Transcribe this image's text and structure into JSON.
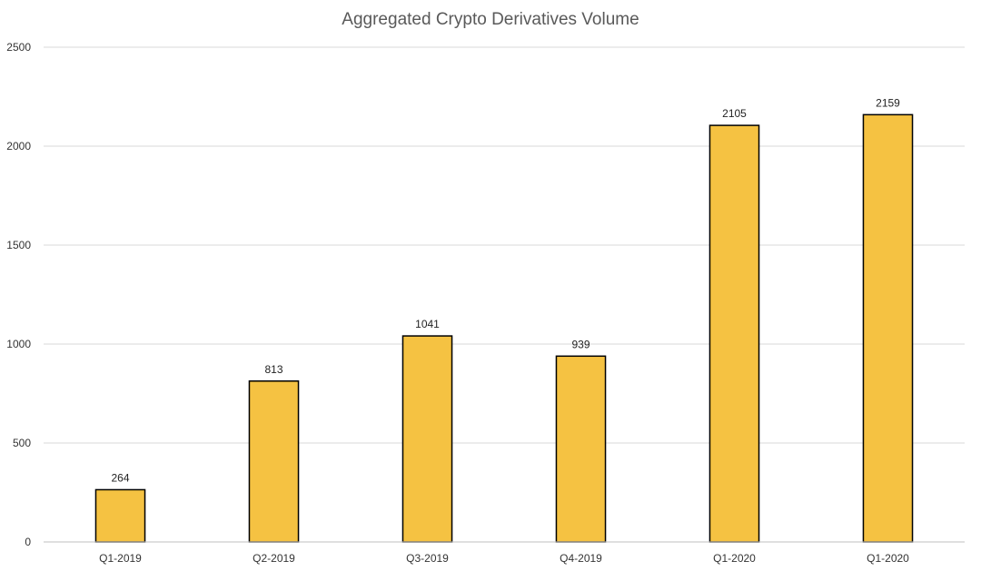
{
  "chart_data": {
    "type": "bar",
    "title": "Aggregated Crypto Derivatives Volume",
    "xlabel": "",
    "ylabel": "",
    "categories": [
      "Q1-2019",
      "Q2-2019",
      "Q3-2019",
      "Q4-2019",
      "Q1-2020",
      "Q1-2020"
    ],
    "values": [
      264,
      813,
      1041,
      939,
      2105,
      2159
    ],
    "ylim": [
      0,
      2500
    ],
    "yticks": [
      0,
      500,
      1000,
      1500,
      2000,
      2500
    ],
    "grid": true,
    "legend": "none",
    "bar_color": "#f5c242",
    "bar_outline": "#000000"
  }
}
